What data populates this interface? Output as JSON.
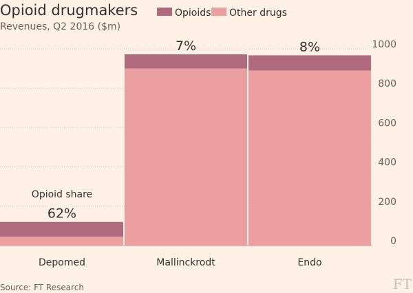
{
  "title": "Opioid drugmakers",
  "subtitle": "Revenues, Q2 2016 ($m)",
  "source": "Source: FT Research",
  "logo_text": "FT",
  "legend": [
    {
      "label": "Opioids",
      "color": "#b06a7e"
    },
    {
      "label": "Other drugs",
      "color": "#eb9f9f"
    }
  ],
  "annotation": "Opioid share",
  "chart_data": {
    "type": "bar",
    "stacked": true,
    "variable_width": true,
    "title": "Opioid drugmakers",
    "subtitle": "Revenues, Q2 2016 ($m)",
    "categories": [
      "Depomed",
      "Mallinckrodt",
      "Endo"
    ],
    "relative_widths": [
      1,
      1,
      1
    ],
    "series": [
      {
        "name": "Other drugs",
        "values": [
          45,
          900,
          890
        ],
        "color": "#eb9f9f"
      },
      {
        "name": "Opioids",
        "values": [
          75,
          72,
          77
        ],
        "color": "#b06a7e"
      }
    ],
    "share_labels": [
      "62%",
      "7%",
      "8%"
    ],
    "ylim": [
      0,
      1000
    ],
    "yticks": [
      0,
      200,
      400,
      600,
      800,
      1000
    ],
    "ytick_labels": [
      "0",
      "200",
      "400",
      "600",
      "800",
      "1000"
    ],
    "y_axis_side": "right",
    "legend_position": "top",
    "grid": true
  }
}
